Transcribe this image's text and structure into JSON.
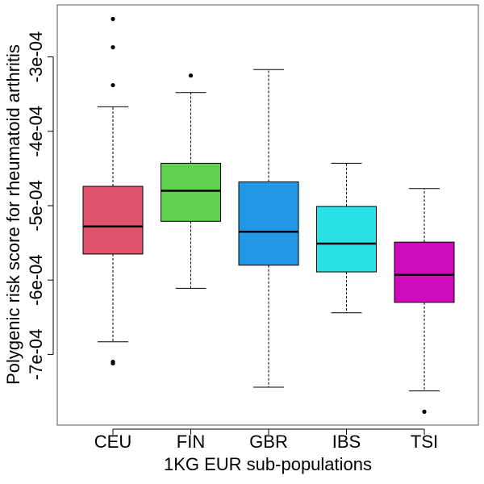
{
  "chart_data": {
    "type": "box",
    "title": "",
    "xlabel": "1KG EUR sub-populations",
    "ylabel": "Polygenic risk score for rheumatoid arthritis",
    "categories": [
      "CEU",
      "FIN",
      "GBR",
      "IBS",
      "TSI"
    ],
    "ylim": [
      -0.000795,
      -0.00023
    ],
    "yticks": [
      -0.0003,
      -0.0004,
      -0.0005,
      -0.0006,
      -0.0007
    ],
    "ytick_labels": [
      "-3e-04",
      "-4e-04",
      "-5e-04",
      "-6e-04",
      "-7e-04"
    ],
    "grid": false,
    "legend": "none",
    "series": [
      {
        "category": "CEU",
        "color": "#DF536B",
        "whisker_low": -0.000683,
        "q1": -0.000565,
        "median": -0.000528,
        "q3": -0.000474,
        "whisker_high": -0.000367,
        "outliers": [
          -0.000249,
          -0.000287,
          -0.000338,
          -0.00071,
          -0.000712
        ]
      },
      {
        "category": "FIN",
        "color": "#61D04F",
        "whisker_low": -0.000611,
        "q1": -0.000521,
        "median": -0.00048,
        "q3": -0.000443,
        "whisker_high": -0.000348,
        "outliers": [
          -0.000325
        ]
      },
      {
        "category": "GBR",
        "color": "#2297E6",
        "whisker_low": -0.000744,
        "q1": -0.00058,
        "median": -0.000535,
        "q3": -0.000468,
        "whisker_high": -0.000317,
        "outliers": []
      },
      {
        "category": "IBS",
        "color": "#28E2E5",
        "whisker_low": -0.000644,
        "q1": -0.000589,
        "median": -0.000551,
        "q3": -0.000501,
        "whisker_high": -0.000443,
        "outliers": []
      },
      {
        "category": "TSI",
        "color": "#CD0BBC",
        "whisker_low": -0.000749,
        "q1": -0.00063,
        "median": -0.000593,
        "q3": -0.000549,
        "whisker_high": -0.000477,
        "outliers": [
          -0.000777
        ]
      }
    ]
  }
}
